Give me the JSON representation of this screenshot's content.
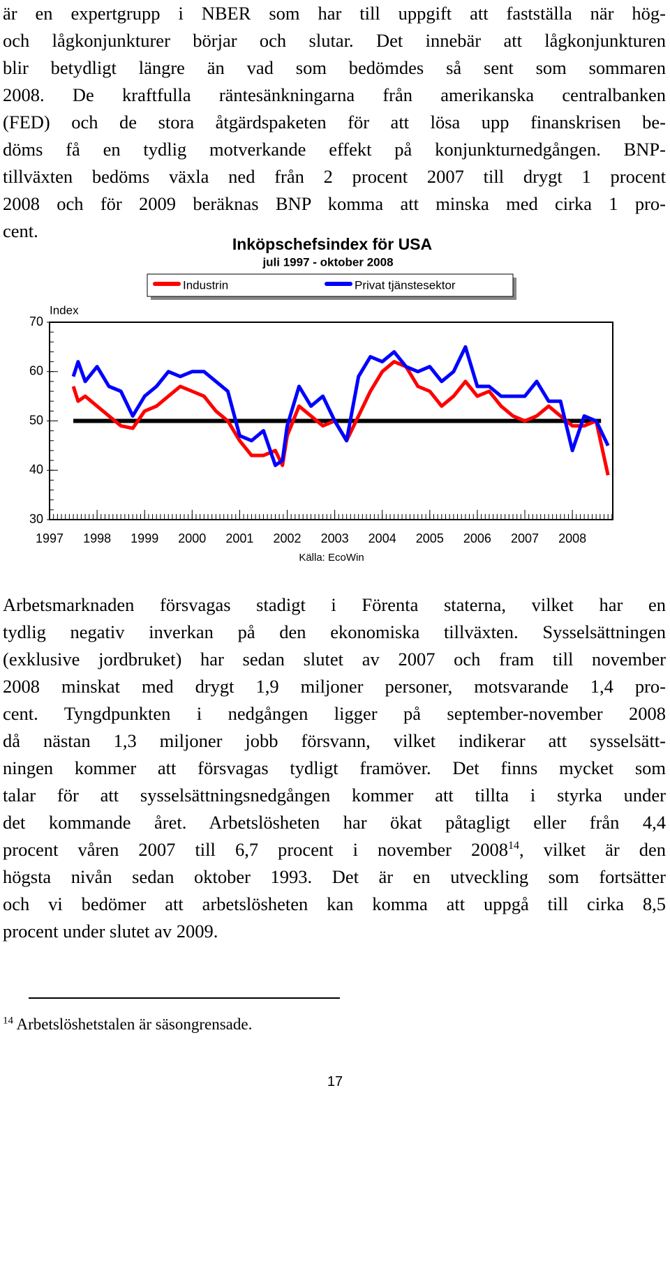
{
  "paragraphs": [
    [
      "är en expertgrupp i NBER som har till uppgift att fastställa när hög-",
      "och lågkonjunkturer börjar och slutar. Det innebär att lågkonjunkturen",
      "blir betydligt längre än vad som bedömdes så sent som sommaren",
      "2008. De kraftfulla räntesänkningarna från amerikanska centralbanken",
      "(FED) och de stora åtgärdspaketen för att lösa upp finanskrisen be-",
      "döms få en tydlig motverkande effekt på konjunkturnedgången. BNP-",
      "tillväxten bedöms växla ned från 2 procent 2007 till drygt 1 procent",
      "2008 och för 2009 beräknas BNP komma att minska med cirka 1 pro-",
      "cent."
    ],
    [
      "Arbetsmarknaden försvagas stadigt i Förenta staterna, vilket har en",
      "tydlig negativ inverkan på den ekonomiska tillväxten. Sysselsättningen",
      "(exklusive jordbruket) har sedan slutet av 2007 och fram till november",
      "2008 minskat med drygt 1,9 miljoner personer, motsvarande 1,4 pro-",
      "cent. Tyngdpunkten i nedgången ligger på september-november 2008",
      "då nästan 1,3 miljoner jobb försvann, vilket indikerar att sysselsätt-",
      "ningen kommer att försvagas tydligt framöver. Det finns mycket som",
      "talar för att sysselsättningsnedgången kommer att tillta i styrka under",
      "det kommande året. Arbetslösheten har ökat påtagligt eller från 4,4",
      [
        "procent våren 2007 till 6,7 procent i november 2008",
        "14",
        ", vilket är den"
      ],
      "högsta nivån sedan oktober 1993. Det är en utveckling som fortsätter",
      "och vi bedömer att arbetslösheten kan komma att uppgå till cirka 8,5",
      "procent under slutet av 2009."
    ]
  ],
  "chart_data": {
    "type": "line",
    "title": "Inköpschefsindex för USA",
    "subtitle": "juli 1997 - oktober 2008",
    "y_label": "Index",
    "source": "Källa: EcoWin",
    "x": [
      1997.5,
      1997.6,
      1997.75,
      1998.0,
      1998.25,
      1998.5,
      1998.75,
      1999.0,
      1999.25,
      1999.5,
      1999.75,
      2000.0,
      2000.25,
      2000.5,
      2000.75,
      2001.0,
      2001.25,
      2001.5,
      2001.75,
      2001.9,
      2002.0,
      2002.25,
      2002.5,
      2002.75,
      2003.0,
      2003.25,
      2003.5,
      2003.75,
      2004.0,
      2004.25,
      2004.5,
      2004.75,
      2005.0,
      2005.25,
      2005.5,
      2005.75,
      2006.0,
      2006.25,
      2006.5,
      2006.75,
      2007.0,
      2007.25,
      2007.5,
      2007.75,
      2008.0,
      2008.25,
      2008.5,
      2008.75
    ],
    "series": [
      {
        "name": "Industrin",
        "color": "#ff0000",
        "values": [
          57,
          54,
          55,
          53,
          51,
          49,
          48.5,
          52,
          53,
          55,
          57,
          56,
          55,
          52,
          50,
          46,
          43,
          43,
          44,
          41,
          47,
          53,
          51,
          49,
          50,
          46,
          51,
          56,
          60,
          62,
          61,
          57,
          56,
          53,
          55,
          58,
          55,
          56,
          53,
          51,
          50,
          51,
          53,
          51,
          49,
          49,
          50,
          39
        ]
      },
      {
        "name": "Privat tjänstesektor",
        "color": "#0000ff",
        "values": [
          59,
          62,
          58,
          61,
          57,
          56,
          51,
          55,
          57,
          60,
          59,
          60,
          60,
          58,
          56,
          47,
          46,
          48,
          41,
          42,
          49,
          57,
          53,
          55,
          50,
          46,
          59,
          63,
          62,
          64,
          61,
          60,
          61,
          58,
          60,
          65,
          57,
          57,
          55,
          55,
          55,
          58,
          54,
          54,
          44,
          51,
          50,
          45
        ]
      }
    ],
    "reference_line": 50,
    "xlim": [
      1997,
      2008.85
    ],
    "xticks": [
      1997,
      1998,
      1999,
      2000,
      2001,
      2002,
      2003,
      2004,
      2005,
      2006,
      2007,
      2008
    ],
    "ylim": [
      30,
      70
    ],
    "yticks": [
      30,
      40,
      50,
      60,
      70
    ]
  },
  "footnote": {
    "number": "14",
    "text": "Arbetslöshetstalen är säsongrensade."
  },
  "page_number": "17"
}
